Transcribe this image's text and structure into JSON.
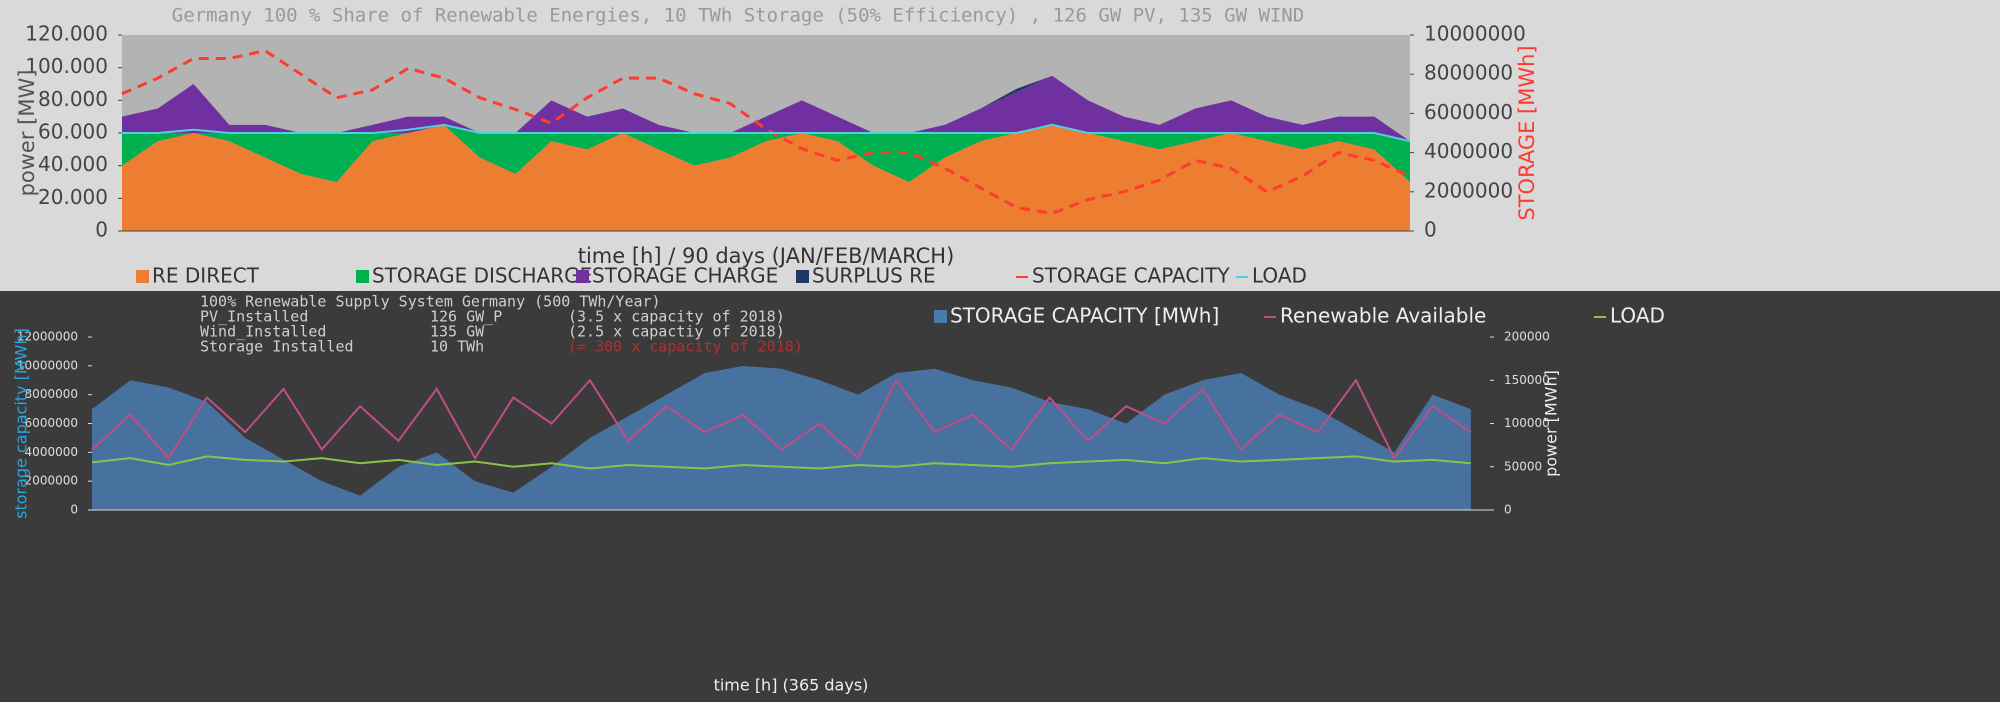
{
  "chart_data": [
    {
      "type": "area",
      "title": "Germany 100 % Share of Renewable Energies, 10 TWh Storage (50% Efficiency) , 126 GW PV, 135 GW WIND",
      "ylabel": "power [MW]",
      "y2label": "STORAGE  [MWh]",
      "xlabel": "time [h] / 90 days (JAN/FEB/MARCH)",
      "x": [
        0,
        60,
        120,
        180,
        240,
        300,
        360,
        420,
        480,
        540,
        600,
        660,
        720,
        780,
        840,
        900,
        960,
        1020,
        1080,
        1140,
        1200,
        1260,
        1320,
        1380,
        1440,
        1500,
        1560,
        1620,
        1680,
        1740,
        1800,
        1860,
        1920,
        1980,
        2040,
        2100,
        2160
      ],
      "xlim": [
        0,
        2160
      ],
      "ylim": [
        0,
        120000
      ],
      "yticks": [
        0,
        {
          "value": 20000,
          "label": "20.000"
        },
        {
          "value": 40000,
          "label": "40.000"
        },
        {
          "value": 60000,
          "label": "60.000"
        },
        {
          "value": 80000,
          "label": "80.000"
        },
        {
          "value": 100000,
          "label": "100.000"
        },
        {
          "value": 120000,
          "label": "120.000"
        }
      ],
      "y2lim": [
        0,
        10000000
      ],
      "y2ticks": [
        0,
        2000000,
        4000000,
        6000000,
        8000000,
        10000000
      ],
      "series": [
        {
          "name": "RE DIRECT",
          "color": "#ed7d31",
          "mark": "area",
          "values": [
            40000,
            55000,
            60000,
            55000,
            45000,
            35000,
            30000,
            55000,
            60000,
            65000,
            45000,
            35000,
            55000,
            50000,
            60000,
            50000,
            40000,
            45000,
            55000,
            60000,
            55000,
            40000,
            30000,
            45000,
            55000,
            60000,
            65000,
            60000,
            55000,
            50000,
            55000,
            60000,
            55000,
            50000,
            55000,
            50000,
            30000
          ]
        },
        {
          "name": "STORAGE DISCHARGE",
          "color": "#00b050",
          "mark": "area",
          "values": [
            20000,
            5000,
            0,
            5000,
            15000,
            25000,
            30000,
            5000,
            0,
            0,
            15000,
            25000,
            5000,
            10000,
            0,
            10000,
            20000,
            15000,
            5000,
            0,
            5000,
            20000,
            30000,
            15000,
            5000,
            0,
            0,
            0,
            5000,
            10000,
            5000,
            0,
            5000,
            10000,
            5000,
            10000,
            25000
          ]
        },
        {
          "name": "STORAGE CHARGE",
          "color": "#7030a0",
          "mark": "area",
          "values": [
            10000,
            15000,
            30000,
            5000,
            5000,
            0,
            0,
            5000,
            10000,
            5000,
            0,
            0,
            20000,
            10000,
            15000,
            5000,
            0,
            0,
            10000,
            20000,
            10000,
            0,
            0,
            5000,
            15000,
            25000,
            30000,
            20000,
            10000,
            5000,
            15000,
            20000,
            10000,
            5000,
            10000,
            10000,
            0
          ]
        },
        {
          "name": "SURPLUS RE",
          "color": "#203864",
          "mark": "area",
          "values": [
            0,
            0,
            0,
            0,
            0,
            0,
            0,
            0,
            0,
            0,
            0,
            0,
            0,
            0,
            0,
            0,
            0,
            0,
            0,
            0,
            0,
            0,
            0,
            0,
            0,
            2000,
            0,
            0,
            0,
            0,
            0,
            0,
            0,
            0,
            0,
            0,
            0
          ]
        },
        {
          "name": "STORAGE CAPACITY",
          "color": "#ff3b30",
          "mark": "line",
          "dashed": true,
          "axis": "y2",
          "values": [
            7000000,
            7800000,
            8800000,
            8800000,
            9200000,
            8000000,
            6800000,
            7200000,
            8300000,
            7800000,
            6800000,
            6200000,
            5500000,
            6800000,
            7800000,
            7800000,
            7000000,
            6500000,
            5200000,
            4200000,
            3600000,
            4000000,
            4000000,
            3200000,
            2200000,
            1200000,
            900000,
            1600000,
            2000000,
            2600000,
            3600000,
            3200000,
            2000000,
            2800000,
            4000000,
            3600000,
            2800000
          ]
        },
        {
          "name": "LOAD",
          "color": "#4dd0e1",
          "mark": "line",
          "values": [
            60000,
            60000,
            62000,
            60000,
            60000,
            60000,
            60000,
            60000,
            62000,
            65000,
            60000,
            60000,
            60000,
            60000,
            60000,
            60000,
            60000,
            60000,
            60000,
            60000,
            60000,
            60000,
            60000,
            60000,
            60000,
            60000,
            65000,
            60000,
            60000,
            60000,
            60000,
            60000,
            60000,
            60000,
            60000,
            60000,
            55000
          ]
        }
      ]
    },
    {
      "type": "area",
      "subtitle": "100% Renewable Supply System Germany (500 TWh/Year)",
      "annotations": [
        [
          "PV_Installed",
          "126 GW_P",
          "(3.5 x capacity of 2018)"
        ],
        [
          "Wind_Installed",
          "135 GW",
          "(2.5 x capactiy of 2018)"
        ],
        [
          "Storage Installed",
          "10 TWh",
          "(= 300 x capacity of 2018)"
        ]
      ],
      "ylabel": "storage capacity [MWh]",
      "y2label": "power [MWh]",
      "xlabel": "time [h] (365 days)",
      "x": [
        0,
        240,
        480,
        720,
        960,
        1200,
        1440,
        1680,
        1920,
        2160,
        2400,
        2640,
        2880,
        3120,
        3360,
        3600,
        3840,
        4080,
        4320,
        4560,
        4800,
        5040,
        5280,
        5520,
        5760,
        6000,
        6240,
        6480,
        6720,
        6960,
        7200,
        7440,
        7680,
        7920,
        8160,
        8400,
        8640
      ],
      "xlim": [
        0,
        8760
      ],
      "ylim": [
        0,
        12000000
      ],
      "yticks": [
        0,
        2000000,
        4000000,
        6000000,
        8000000,
        10000000,
        12000000
      ],
      "y2lim": [
        0,
        200000
      ],
      "y2ticks": [
        0,
        50000,
        100000,
        150000,
        200000
      ],
      "series": [
        {
          "name": "STORAGE CAPACITY [MWh]",
          "color": "#4a7bb0",
          "mark": "area",
          "values": [
            7000000,
            9000000,
            8500000,
            7500000,
            5000000,
            3500000,
            2000000,
            1000000,
            3000000,
            4000000,
            2000000,
            1200000,
            3000000,
            5000000,
            6500000,
            8000000,
            9500000,
            10000000,
            9800000,
            9000000,
            8000000,
            9500000,
            9800000,
            9000000,
            8500000,
            7500000,
            7000000,
            6000000,
            8000000,
            9000000,
            9500000,
            8000000,
            7000000,
            5500000,
            4000000,
            8000000,
            7000000
          ]
        },
        {
          "name": "Renewable Available",
          "color": "#c04d8a",
          "mark": "line",
          "axis": "y2",
          "values": [
            70000,
            110000,
            60000,
            130000,
            90000,
            140000,
            70000,
            120000,
            80000,
            140000,
            60000,
            130000,
            100000,
            150000,
            80000,
            120000,
            90000,
            110000,
            70000,
            100000,
            60000,
            150000,
            90000,
            110000,
            70000,
            130000,
            80000,
            120000,
            100000,
            140000,
            70000,
            110000,
            90000,
            150000,
            60000,
            120000,
            90000
          ]
        },
        {
          "name": "LOAD",
          "color": "#8bc34a",
          "mark": "line",
          "axis": "y2",
          "values": [
            55000,
            60000,
            52000,
            62000,
            58000,
            56000,
            60000,
            54000,
            58000,
            52000,
            56000,
            50000,
            54000,
            48000,
            52000,
            50000,
            48000,
            52000,
            50000,
            48000,
            52000,
            50000,
            54000,
            52000,
            50000,
            54000,
            56000,
            58000,
            54000,
            60000,
            56000,
            58000,
            60000,
            62000,
            56000,
            58000,
            54000
          ]
        }
      ]
    }
  ]
}
